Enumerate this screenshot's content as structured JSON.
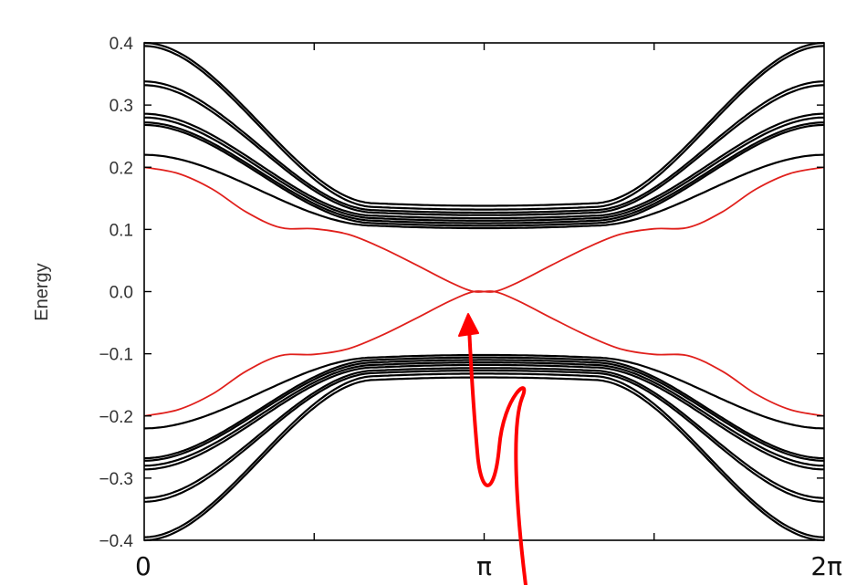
{
  "chart_data": {
    "type": "line",
    "title": "",
    "xlabel": "",
    "ylabel": "Energy",
    "xlim": [
      0,
      2
    ],
    "ylim": [
      -0.4,
      0.4
    ],
    "x_unit": "π",
    "x_tick_labels": [
      "0",
      "π",
      "2π"
    ],
    "y_ticks": [
      -0.4,
      -0.3,
      -0.2,
      -0.1,
      0.0,
      0.1,
      0.2,
      0.3,
      0.4
    ],
    "y_tick_labels": [
      "−0.4",
      "−0.3",
      "−0.2",
      "−0.1",
      "0.0",
      "0.1",
      "0.2",
      "0.3",
      "0.4"
    ],
    "grid": false,
    "legend": "none",
    "colors": {
      "bulk_bands": "#000000",
      "edge_states": "#e0201c",
      "annotation_arrow": "#ff0000"
    },
    "bulk_band_edges_at_0": [
      0.4,
      0.395,
      0.338,
      0.332,
      0.286,
      0.28,
      0.272,
      0.268,
      0.22
    ],
    "bulk_band_center_values": [
      0.142,
      0.136,
      0.131,
      0.127,
      0.122,
      0.118,
      0.114,
      0.11,
      0.106
    ],
    "series": [
      {
        "points": [
          [
            0,
            0.2
          ],
          [
            0.1,
            0.19
          ],
          [
            0.2,
            0.165
          ],
          [
            0.3,
            0.128
          ],
          [
            0.4,
            0.103
          ],
          [
            0.5,
            0.101
          ],
          [
            0.6,
            0.092
          ],
          [
            0.7,
            0.07
          ],
          [
            0.8,
            0.043
          ],
          [
            0.9,
            0.015
          ],
          [
            0.97,
            0
          ],
          [
            1.03,
            0
          ],
          [
            1.1,
            -0.015
          ],
          [
            1.2,
            -0.043
          ],
          [
            1.3,
            -0.07
          ],
          [
            1.4,
            -0.092
          ],
          [
            1.5,
            -0.101
          ],
          [
            1.6,
            -0.103
          ],
          [
            1.7,
            -0.128
          ],
          [
            1.8,
            -0.165
          ],
          [
            1.9,
            -0.19
          ],
          [
            2.0,
            -0.2
          ]
        ]
      },
      {
        "points": [
          [
            0,
            -0.2
          ],
          [
            0.1,
            -0.19
          ],
          [
            0.2,
            -0.165
          ],
          [
            0.3,
            -0.128
          ],
          [
            0.4,
            -0.103
          ],
          [
            0.5,
            -0.101
          ],
          [
            0.6,
            -0.092
          ],
          [
            0.7,
            -0.07
          ],
          [
            0.8,
            -0.043
          ],
          [
            0.9,
            -0.015
          ],
          [
            0.97,
            0
          ],
          [
            1.03,
            0
          ],
          [
            1.1,
            0.015
          ],
          [
            1.2,
            0.043
          ],
          [
            1.3,
            0.07
          ],
          [
            1.4,
            0.092
          ],
          [
            1.5,
            0.101
          ],
          [
            1.6,
            0.103
          ],
          [
            1.7,
            0.128
          ],
          [
            1.8,
            0.165
          ],
          [
            1.9,
            0.19
          ],
          [
            2.0,
            0.2
          ]
        ]
      }
    ]
  }
}
